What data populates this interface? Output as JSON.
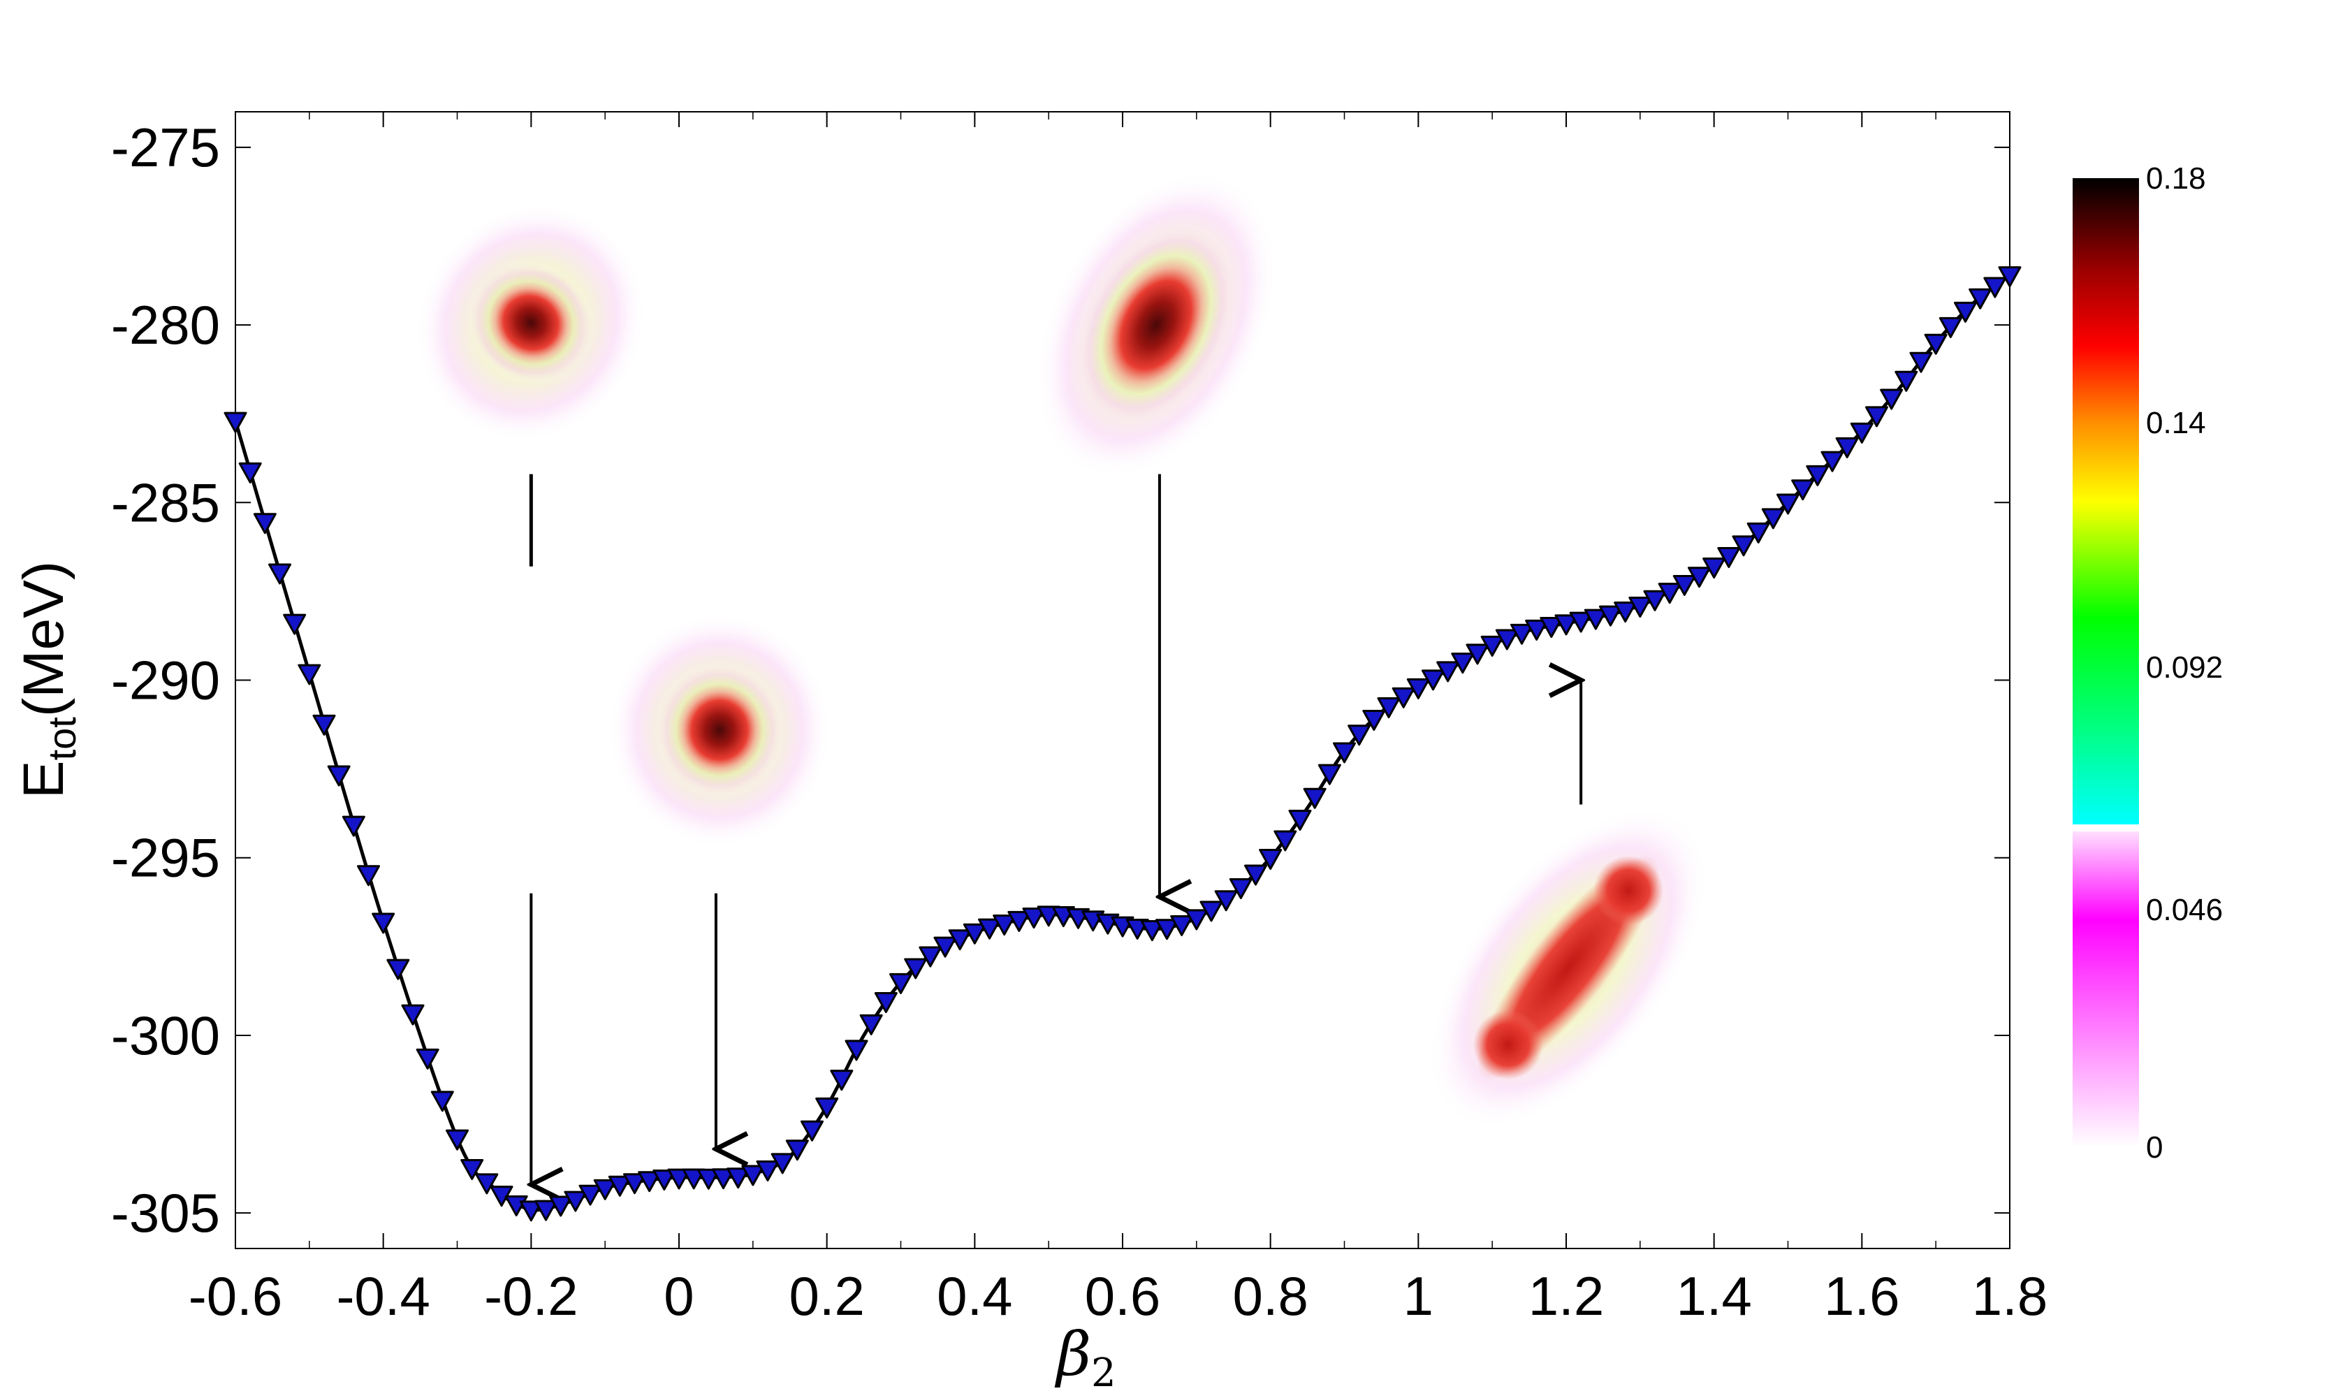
{
  "chart_data": {
    "type": "line",
    "title": "",
    "xlabel": "β",
    "xlabel_sub": "2",
    "ylabel": "E",
    "ylabel_sub": "tot",
    "ylabel_unit": "(MeV)",
    "xlim": [
      -0.6,
      1.8
    ],
    "ylim": [
      -306,
      -274
    ],
    "x_ticks": [
      -0.6,
      -0.4,
      -0.2,
      0,
      0.2,
      0.4,
      0.6,
      0.8,
      1,
      1.2,
      1.4,
      1.6,
      1.8
    ],
    "x_tick_labels": [
      "-0.6",
      "-0.4",
      "-0.2",
      "0",
      "0.2",
      "0.4",
      "0.6",
      "0.8",
      "1",
      "1.2",
      "1.4",
      "1.6",
      "1.8"
    ],
    "y_ticks": [
      -275,
      -280,
      -285,
      -290,
      -295,
      -300,
      -305
    ],
    "y_tick_labels": [
      "-275",
      "-280",
      "-285",
      "-290",
      "-295",
      "-300",
      "-305"
    ],
    "grid": false,
    "marker": "downward-triangle",
    "marker_color": "#1414c8",
    "line_color": "#000000",
    "series": [
      {
        "x": [
          -0.6,
          -0.5,
          -0.4,
          -0.3,
          -0.25,
          -0.2,
          -0.15,
          -0.1,
          -0.05,
          0.0,
          0.05,
          0.1,
          0.15,
          0.2,
          0.25,
          0.3,
          0.35,
          0.4,
          0.45,
          0.5,
          0.55,
          0.6,
          0.65,
          0.7,
          0.75,
          0.8,
          0.85,
          0.9,
          0.95,
          1.0,
          1.05,
          1.1,
          1.15,
          1.2,
          1.25,
          1.3,
          1.35,
          1.4,
          1.45,
          1.5,
          1.55,
          1.6,
          1.65,
          1.7,
          1.75,
          1.8
        ],
        "y": [
          -282.7,
          -289.8,
          -296.8,
          -302.9,
          -304.3,
          -304.9,
          -304.7,
          -304.3,
          -304.1,
          -304.0,
          -304.0,
          -303.9,
          -303.4,
          -302.0,
          -300.0,
          -298.5,
          -297.6,
          -297.1,
          -296.8,
          -296.6,
          -296.7,
          -296.9,
          -297.0,
          -296.7,
          -296.0,
          -295.0,
          -293.6,
          -292.0,
          -290.9,
          -290.2,
          -289.6,
          -289.0,
          -288.6,
          -288.4,
          -288.2,
          -287.9,
          -287.4,
          -286.8,
          -286.0,
          -285.0,
          -284.0,
          -283.0,
          -281.8,
          -280.5,
          -279.4,
          -278.6
        ]
      }
    ],
    "annotations": {
      "arrows_down": [
        {
          "x": -0.2,
          "y_start": -296,
          "y_end": -304.2
        },
        {
          "x": 0.05,
          "y_start": -296,
          "y_end": -303.2
        },
        {
          "x": 0.65,
          "y_start": -284.2,
          "y_end": -296.1
        }
      ],
      "arrows_up": [
        {
          "x": 1.22,
          "y_start": -293.5,
          "y_end": -290.0
        }
      ],
      "segments": [
        {
          "x": -0.2,
          "y_start": -284.2,
          "y_end": -286.8
        }
      ]
    },
    "density_insets": [
      {
        "beta2": -0.2,
        "shape": "flattened",
        "at": [
          -0.2,
          -279.5
        ]
      },
      {
        "beta2": 0.05,
        "shape": "spherical",
        "at": [
          0.06,
          -291.7
        ]
      },
      {
        "beta2": 0.65,
        "shape": "prolate",
        "at": [
          0.66,
          -279.7
        ]
      },
      {
        "beta2": 1.22,
        "shape": "linear-chain",
        "at": [
          1.22,
          -297.9
        ]
      }
    ],
    "colorbar": {
      "ticks": [
        0.18,
        0.14,
        0.092,
        0.046,
        0
      ],
      "tick_labels": [
        "0.18",
        "0.14",
        "0.092",
        "0.046",
        "0"
      ],
      "range": [
        0,
        0.18
      ],
      "stops": [
        "#ffffff",
        "#ff00ff",
        "#00ffff",
        "#00ff00",
        "#ffff00",
        "#ff8000",
        "#ff0000",
        "#000000"
      ]
    }
  }
}
